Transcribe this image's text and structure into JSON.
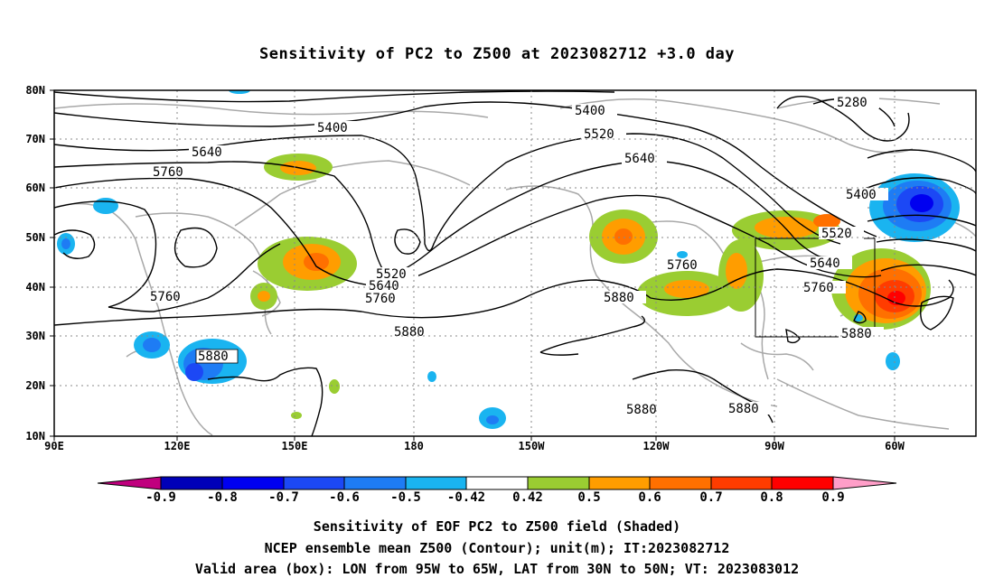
{
  "title": "Sensitivity of PC2 to Z500 at 2023082712 +3.0 day",
  "lat_labels": [
    "80N",
    "70N",
    "60N",
    "50N",
    "40N",
    "30N",
    "20N",
    "10N"
  ],
  "lon_labels": [
    "90E",
    "120E",
    "150E",
    "180",
    "150W",
    "120W",
    "90W",
    "60W"
  ],
  "contour_labels": {
    "c5280": "5280",
    "c5400a": "5400",
    "c5400b": "5400",
    "c5400c": "5400",
    "c5520a": "5520",
    "c5520b": "5520",
    "c5520c": "5520",
    "c5640a": "5640",
    "c5640b": "5640",
    "c5640c": "5640",
    "c5640d": "5640",
    "c5760a": "5760",
    "c5760b": "5760",
    "c5760c": "5760",
    "c5760d": "5760",
    "c5760e": "5760",
    "c5880a": "5880",
    "c5880b": "5880",
    "c5880c": "5880",
    "c5880d": "5880",
    "c5880e": "5880",
    "c5880f": "5880"
  },
  "colorbar": {
    "ticks": [
      "-0.9",
      "-0.8",
      "-0.7",
      "-0.6",
      "-0.5",
      "-0.42",
      "0.42",
      "0.5",
      "0.6",
      "0.7",
      "0.8",
      "0.9"
    ],
    "colors": [
      "#c0007e",
      "#0000b8",
      "#0000f0",
      "#1c48f5",
      "#1e7cf4",
      "#1ab4f0",
      "#ffffff",
      "#9acd32",
      "#ff9d00",
      "#ff7000",
      "#ff3c00",
      "#ff0000",
      "#ff9ec8"
    ]
  },
  "footer": {
    "line1": "Sensitivity of EOF PC2 to Z500 field (Shaded)",
    "line2": "NCEP ensemble mean Z500 (Contour); unit(m); IT:2023082712",
    "line3": "Valid area (box): LON from 95W to 65W, LAT from 30N to 50N; VT: 2023083012"
  }
}
